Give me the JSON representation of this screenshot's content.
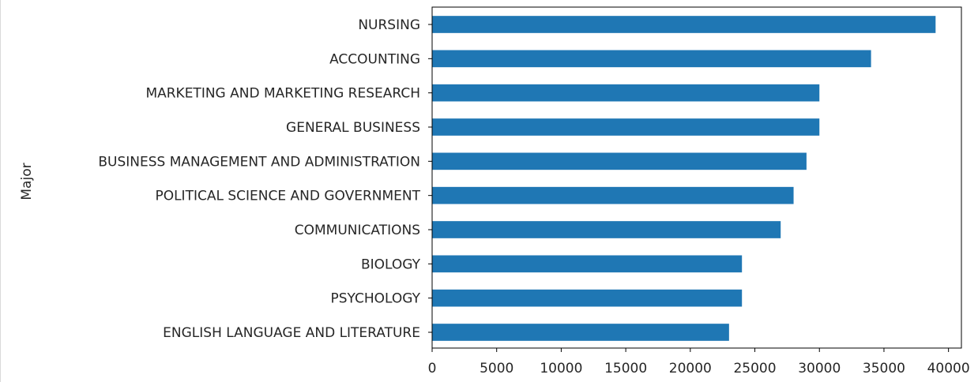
{
  "chart_data": {
    "type": "bar",
    "orientation": "horizontal",
    "title": "",
    "xlabel": "",
    "ylabel": "Major",
    "categories": [
      "NURSING",
      "ACCOUNTING",
      "MARKETING AND MARKETING RESEARCH",
      "GENERAL BUSINESS",
      "BUSINESS MANAGEMENT AND ADMINISTRATION",
      "POLITICAL SCIENCE AND GOVERNMENT",
      "COMMUNICATIONS",
      "BIOLOGY",
      "PSYCHOLOGY",
      "ENGLISH LANGUAGE AND LITERATURE"
    ],
    "values": [
      39000,
      34000,
      30000,
      30000,
      29000,
      28000,
      27000,
      24000,
      24000,
      23000
    ],
    "xlim": [
      0,
      41000
    ],
    "xticks": [
      0,
      5000,
      10000,
      15000,
      20000,
      25000,
      30000,
      35000,
      40000
    ],
    "xtick_labels": [
      "0",
      "5000",
      "10000",
      "15000",
      "20000",
      "25000",
      "30000",
      "35000",
      "40000"
    ],
    "bar_color": "#1f77b4",
    "grid": false,
    "legend": "none"
  }
}
